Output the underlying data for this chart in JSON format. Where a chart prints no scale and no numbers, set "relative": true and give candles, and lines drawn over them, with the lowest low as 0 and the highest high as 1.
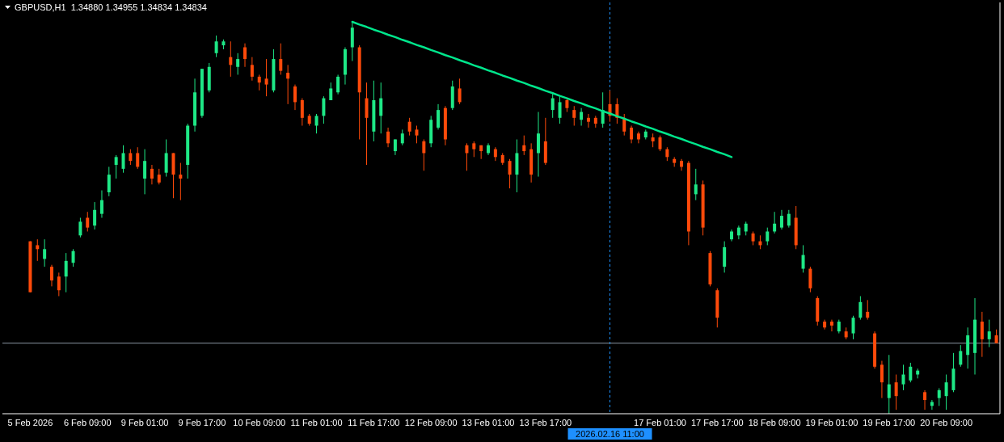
{
  "chart_data": {
    "type": "candlestick",
    "title": "GBPUSD,H1  1.34880 1.34955 1.34834 1.34834",
    "relative": true,
    "categories": [
      "5 Feb 2026",
      null,
      null,
      null,
      null,
      null,
      null,
      null,
      "6 Feb 09:00",
      null,
      null,
      null,
      null,
      null,
      null,
      null,
      "9 Feb 01:00",
      null,
      null,
      null,
      null,
      null,
      null,
      null,
      "9 Feb 17:00",
      null,
      null,
      null,
      null,
      null,
      null,
      null,
      "10 Feb 09:00",
      null,
      null,
      null,
      null,
      null,
      null,
      null,
      "11 Feb 01:00",
      null,
      null,
      null,
      null,
      null,
      null,
      null,
      "11 Feb 17:00",
      null,
      null,
      null,
      null,
      null,
      null,
      null,
      "12 Feb 09:00",
      null,
      null,
      null,
      null,
      null,
      null,
      null,
      "13 Feb 01:00",
      null,
      null,
      null,
      null,
      null,
      null,
      null,
      "13 Feb 17:00",
      null,
      null,
      null,
      null,
      null,
      null,
      null,
      null,
      "2026.02.16 11:00",
      null,
      null,
      null,
      null,
      null,
      null,
      "17 Feb 01:00",
      null,
      null,
      null,
      null,
      null,
      null,
      null,
      "17 Feb 17:00",
      null,
      null,
      null,
      null,
      null,
      null,
      null,
      "18 Feb 09:00",
      null,
      null,
      null,
      null,
      null,
      null,
      null,
      "19 Feb 01:00",
      null,
      null,
      null,
      null,
      null,
      null,
      null,
      "19 Feb 17:00",
      null,
      null,
      null,
      null,
      null,
      null,
      null,
      "20 Feb 09:00",
      null,
      null,
      null,
      null,
      null,
      null,
      null
    ],
    "ohlc": [
      [
        0.44,
        0.44,
        0.31,
        0.31
      ],
      [
        0.43,
        0.445,
        0.39,
        0.42
      ],
      [
        0.395,
        0.445,
        0.375,
        0.42
      ],
      [
        0.375,
        0.38,
        0.325,
        0.34
      ],
      [
        0.35,
        0.36,
        0.3,
        0.315
      ],
      [
        0.35,
        0.41,
        0.31,
        0.39
      ],
      [
        0.385,
        0.42,
        0.375,
        0.415
      ],
      [
        0.455,
        0.5,
        0.45,
        0.49
      ],
      [
        0.5,
        0.515,
        0.465,
        0.475
      ],
      [
        0.48,
        0.54,
        0.47,
        0.52
      ],
      [
        0.51,
        0.57,
        0.5,
        0.545
      ],
      [
        0.565,
        0.63,
        0.555,
        0.61
      ],
      [
        0.635,
        0.66,
        0.6,
        0.655
      ],
      [
        0.625,
        0.685,
        0.615,
        0.665
      ],
      [
        0.665,
        0.675,
        0.635,
        0.645
      ],
      [
        0.665,
        0.68,
        0.625,
        0.63
      ],
      [
        0.6,
        0.675,
        0.56,
        0.645
      ],
      [
        0.625,
        0.635,
        0.585,
        0.6
      ],
      [
        0.61,
        0.625,
        0.585,
        0.59
      ],
      [
        0.615,
        0.7,
        0.605,
        0.665
      ],
      [
        0.665,
        0.665,
        0.55,
        0.61
      ],
      [
        0.61,
        0.64,
        0.545,
        0.6
      ],
      [
        0.635,
        0.74,
        0.6,
        0.735
      ],
      [
        0.735,
        0.855,
        0.72,
        0.82
      ],
      [
        0.76,
        0.88,
        0.755,
        0.88
      ],
      [
        0.825,
        0.895,
        0.82,
        0.885
      ],
      [
        0.92,
        0.965,
        0.91,
        0.95
      ],
      [
        0.94,
        0.955,
        0.93,
        0.95
      ],
      [
        0.91,
        0.95,
        0.86,
        0.89
      ],
      [
        0.885,
        0.92,
        0.865,
        0.905
      ],
      [
        0.935,
        0.945,
        0.885,
        0.905
      ],
      [
        0.89,
        0.91,
        0.85,
        0.86
      ],
      [
        0.86,
        0.865,
        0.825,
        0.845
      ],
      [
        0.855,
        0.905,
        0.81,
        0.84
      ],
      [
        0.825,
        0.93,
        0.82,
        0.905
      ],
      [
        0.905,
        0.945,
        0.865,
        0.875
      ],
      [
        0.87,
        0.89,
        0.79,
        0.855
      ],
      [
        0.835,
        0.84,
        0.775,
        0.795
      ],
      [
        0.8,
        0.805,
        0.735,
        0.755
      ],
      [
        0.76,
        0.765,
        0.735,
        0.74
      ],
      [
        0.735,
        0.765,
        0.715,
        0.76
      ],
      [
        0.76,
        0.81,
        0.74,
        0.805
      ],
      [
        0.8,
        0.845,
        0.8,
        0.83
      ],
      [
        0.82,
        0.865,
        0.815,
        0.86
      ],
      [
        0.865,
        0.935,
        0.84,
        0.93
      ],
      [
        0.935,
        1.0,
        0.9,
        0.985
      ],
      [
        0.935,
        0.94,
        0.7,
        0.82
      ],
      [
        0.805,
        0.845,
        0.635,
        0.755
      ],
      [
        0.72,
        0.85,
        0.695,
        0.8
      ],
      [
        0.76,
        0.845,
        0.715,
        0.805
      ],
      [
        0.72,
        0.73,
        0.68,
        0.69
      ],
      [
        0.67,
        0.7,
        0.66,
        0.7
      ],
      [
        0.69,
        0.725,
        0.685,
        0.715
      ],
      [
        0.745,
        0.755,
        0.71,
        0.72
      ],
      [
        0.725,
        0.735,
        0.69,
        0.71
      ],
      [
        0.695,
        0.7,
        0.62,
        0.665
      ],
      [
        0.69,
        0.76,
        0.68,
        0.75
      ],
      [
        0.73,
        0.79,
        0.725,
        0.775
      ],
      [
        0.78,
        0.785,
        0.685,
        0.7
      ],
      [
        0.78,
        0.85,
        0.775,
        0.835
      ],
      [
        0.83,
        0.855,
        0.79,
        0.795
      ],
      [
        0.685,
        0.69,
        0.62,
        0.665
      ],
      [
        0.69,
        0.695,
        0.655,
        0.675
      ],
      [
        0.685,
        0.685,
        0.65,
        0.67
      ],
      [
        0.665,
        0.69,
        0.66,
        0.685
      ],
      [
        0.675,
        0.68,
        0.645,
        0.655
      ],
      [
        0.66,
        0.665,
        0.635,
        0.64
      ],
      [
        0.645,
        0.65,
        0.575,
        0.61
      ],
      [
        0.61,
        0.7,
        0.565,
        0.665
      ],
      [
        0.685,
        0.71,
        0.66,
        0.67
      ],
      [
        0.675,
        0.69,
        0.59,
        0.61
      ],
      [
        0.665,
        0.77,
        0.605,
        0.715
      ],
      [
        0.695,
        0.755,
        0.635,
        0.64
      ],
      [
        0.775,
        0.82,
        0.755,
        0.805
      ],
      [
        0.755,
        0.81,
        0.74,
        0.795
      ],
      [
        0.8,
        0.805,
        0.77,
        0.78
      ],
      [
        0.775,
        0.785,
        0.735,
        0.755
      ],
      [
        0.75,
        0.78,
        0.735,
        0.77
      ],
      [
        0.755,
        0.765,
        0.73,
        0.745
      ],
      [
        0.755,
        0.76,
        0.73,
        0.74
      ],
      [
        0.74,
        0.82,
        0.73,
        0.775
      ],
      [
        0.79,
        0.825,
        0.745,
        0.76
      ],
      [
        0.79,
        0.805,
        0.74,
        0.755
      ],
      [
        0.755,
        0.765,
        0.71,
        0.72
      ],
      [
        0.73,
        0.735,
        0.69,
        0.7
      ],
      [
        0.715,
        0.72,
        0.69,
        0.7
      ],
      [
        0.705,
        0.725,
        0.7,
        0.72
      ],
      [
        0.705,
        0.715,
        0.68,
        0.695
      ],
      [
        0.705,
        0.71,
        0.67,
        0.675
      ],
      [
        0.675,
        0.68,
        0.645,
        0.655
      ],
      [
        0.65,
        0.655,
        0.63,
        0.64
      ],
      [
        0.645,
        0.65,
        0.62,
        0.63
      ],
      [
        0.64,
        0.645,
        0.43,
        0.465
      ],
      [
        0.56,
        0.625,
        0.545,
        0.585
      ],
      [
        0.585,
        0.595,
        0.455,
        0.475
      ],
      [
        0.41,
        0.415,
        0.325,
        0.33
      ],
      [
        0.315,
        0.32,
        0.22,
        0.245
      ],
      [
        0.375,
        0.44,
        0.36,
        0.425
      ],
      [
        0.445,
        0.47,
        0.44,
        0.465
      ],
      [
        0.455,
        0.48,
        0.445,
        0.475
      ],
      [
        0.465,
        0.49,
        0.455,
        0.485
      ],
      [
        0.46,
        0.465,
        0.43,
        0.44
      ],
      [
        0.44,
        0.455,
        0.42,
        0.43
      ],
      [
        0.44,
        0.475,
        0.43,
        0.465
      ],
      [
        0.465,
        0.515,
        0.46,
        0.485
      ],
      [
        0.475,
        0.52,
        0.47,
        0.505
      ],
      [
        0.48,
        0.52,
        0.475,
        0.51
      ],
      [
        0.5,
        0.53,
        0.42,
        0.43
      ],
      [
        0.37,
        0.43,
        0.36,
        0.405
      ],
      [
        0.37,
        0.375,
        0.31,
        0.32
      ],
      [
        0.295,
        0.3,
        0.225,
        0.235
      ],
      [
        0.235,
        0.24,
        0.215,
        0.22
      ],
      [
        0.235,
        0.24,
        0.21,
        0.225
      ],
      [
        0.21,
        0.24,
        0.205,
        0.235
      ],
      [
        0.21,
        0.22,
        0.19,
        0.195
      ],
      [
        0.205,
        0.25,
        0.19,
        0.245
      ],
      [
        0.245,
        0.3,
        0.24,
        0.285
      ],
      [
        0.26,
        0.29,
        0.24,
        0.245
      ],
      [
        0.205,
        0.21,
        0.115,
        0.12
      ],
      [
        0.125,
        0.135,
        0.04,
        0.08
      ],
      [
        0.04,
        0.15,
        0.0,
        0.075
      ],
      [
        0.08,
        0.1,
        0.01,
        0.045
      ],
      [
        0.075,
        0.125,
        0.06,
        0.1
      ],
      [
        0.085,
        0.13,
        0.08,
        0.12
      ],
      [
        0.1,
        0.115,
        0.09,
        0.11
      ],
      [
        0.055,
        0.06,
        0.01,
        0.035
      ],
      [
        0.02,
        0.035,
        0.01,
        0.03
      ],
      [
        0.04,
        0.065,
        0.02,
        0.06
      ],
      [
        0.045,
        0.1,
        0.01,
        0.08
      ],
      [
        0.06,
        0.155,
        0.055,
        0.115
      ],
      [
        0.125,
        0.175,
        0.12,
        0.16
      ],
      [
        0.15,
        0.22,
        0.115,
        0.2
      ],
      [
        0.155,
        0.295,
        0.1,
        0.24
      ],
      [
        0.235,
        0.26,
        0.145,
        0.19
      ],
      [
        0.19,
        0.24,
        0.17,
        0.21
      ],
      [
        0.2,
        0.215,
        0.18,
        0.18
      ]
    ],
    "colors": [
      "#ff4a0a",
      "#ff4a0a",
      "#1ee886",
      "#ff4a0a",
      "#ff4a0a",
      "#1ee886",
      "#1ee886",
      "#1ee886",
      "#ff4a0a",
      "#1ee886",
      "#1ee886",
      "#1ee886",
      "#1ee886",
      "#1ee886",
      "#ff4a0a",
      "#ff4a0a",
      "#1ee886",
      "#ff4a0a",
      "#ff4a0a",
      "#1ee886",
      "#ff4a0a",
      "#ff4a0a",
      "#1ee886",
      "#1ee886",
      "#1ee886",
      "#1ee886",
      "#1ee886",
      "#1ee886",
      "#ff4a0a",
      "#1ee886",
      "#ff4a0a",
      "#ff4a0a",
      "#ff4a0a",
      "#ff4a0a",
      "#1ee886",
      "#ff4a0a",
      "#ff4a0a",
      "#ff4a0a",
      "#ff4a0a",
      "#ff4a0a",
      "#1ee886",
      "#1ee886",
      "#1ee886",
      "#1ee886",
      "#1ee886",
      "#1ee886",
      "#ff4a0a",
      "#ff4a0a",
      "#1ee886",
      "#1ee886",
      "#ff4a0a",
      "#1ee886",
      "#1ee886",
      "#ff4a0a",
      "#ff4a0a",
      "#ff4a0a",
      "#1ee886",
      "#1ee886",
      "#ff4a0a",
      "#1ee886",
      "#ff4a0a",
      "#ff4a0a",
      "#ff4a0a",
      "#ff4a0a",
      "#1ee886",
      "#ff4a0a",
      "#ff4a0a",
      "#ff4a0a",
      "#1ee886",
      "#ff4a0a",
      "#ff4a0a",
      "#1ee886",
      "#ff4a0a",
      "#1ee886",
      "#1ee886",
      "#ff4a0a",
      "#ff4a0a",
      "#1ee886",
      "#ff4a0a",
      "#ff4a0a",
      "#1ee886",
      "#ff4a0a",
      "#ff4a0a",
      "#ff4a0a",
      "#ff4a0a",
      "#ff4a0a",
      "#1ee886",
      "#ff4a0a",
      "#ff4a0a",
      "#ff4a0a",
      "#ff4a0a",
      "#ff4a0a",
      "#ff4a0a",
      "#1ee886",
      "#ff4a0a",
      "#ff4a0a",
      "#ff4a0a",
      "#1ee886",
      "#1ee886",
      "#1ee886",
      "#1ee886",
      "#ff4a0a",
      "#ff4a0a",
      "#1ee886",
      "#1ee886",
      "#1ee886",
      "#1ee886",
      "#ff4a0a",
      "#1ee886",
      "#ff4a0a",
      "#ff4a0a",
      "#ff4a0a",
      "#ff4a0a",
      "#1ee886",
      "#ff4a0a",
      "#1ee886",
      "#1ee886",
      "#ff4a0a",
      "#ff4a0a",
      "#ff4a0a",
      "#1ee886",
      "#ff4a0a",
      "#1ee886",
      "#1ee886",
      "#1ee886",
      "#ff4a0a",
      "#1ee886",
      "#1ee886",
      "#1ee886",
      "#1ee886",
      "#1ee886",
      "#1ee886",
      "#1ee886",
      "#ff4a0a",
      "#1ee886",
      "#ff4a0a"
    ],
    "series": [
      {
        "type": "line",
        "color": "#00e68c",
        "values": [
          null,
          null,
          null,
          null,
          null,
          null,
          null,
          null,
          null,
          null,
          null,
          null,
          null,
          null,
          null,
          null,
          null,
          null,
          null,
          null,
          null,
          null,
          null,
          null,
          null,
          null,
          null,
          null,
          null,
          null,
          null,
          null,
          null,
          null,
          null,
          null,
          null,
          null,
          null,
          null,
          null,
          null,
          null,
          null,
          null,
          1.0,
          0.993,
          0.987,
          0.98,
          0.974,
          0.967,
          0.961,
          0.954,
          0.948,
          0.941,
          0.935,
          0.928,
          0.922,
          0.915,
          0.909,
          0.902,
          0.896,
          0.889,
          0.883,
          0.876,
          0.87,
          0.863,
          0.857,
          0.85,
          0.844,
          0.837,
          0.831,
          0.824,
          0.818,
          0.811,
          0.805,
          0.798,
          0.792,
          0.785,
          0.779,
          0.772,
          0.766,
          0.759,
          0.753,
          0.746,
          0.74,
          0.733,
          0.727,
          0.72,
          0.714,
          0.707,
          0.701,
          0.694,
          0.688,
          0.681,
          0.675,
          0.668,
          0.662,
          0.655,
          null,
          null,
          null,
          null,
          null,
          null,
          null,
          null,
          null,
          null,
          null,
          null,
          null,
          null,
          null,
          null,
          null,
          null,
          null,
          null,
          null,
          null,
          null,
          null,
          null,
          null,
          null,
          null,
          null,
          null,
          null,
          null,
          null,
          null,
          null,
          null,
          null
        ]
      }
    ],
    "ref_lines": [
      {
        "axis": "y",
        "value": 0.18,
        "color": "#8a96a3",
        "line_style": "solid"
      },
      {
        "axis": "x",
        "value": "2026.02.16 11:00",
        "color": "#1e90ff",
        "line_style": "dashed"
      }
    ]
  }
}
